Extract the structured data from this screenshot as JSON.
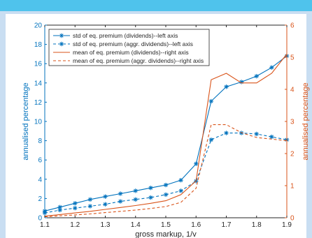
{
  "chart_data": {
    "type": "line",
    "title": "",
    "xlabel": "gross markup, 1/v",
    "ylabel_left": "annualised percentage",
    "ylabel_right": "annualised percentage",
    "xlim": [
      1.1,
      1.9
    ],
    "ylim_left": [
      0,
      20
    ],
    "ylim_right": [
      0,
      6
    ],
    "x_ticks": [
      "1.1",
      "1.2",
      "1.3",
      "1.4",
      "1.5",
      "1.6",
      "1.7",
      "1.8",
      "1.9"
    ],
    "y_ticks_left": [
      "0",
      "2",
      "4",
      "6",
      "8",
      "10",
      "12",
      "14",
      "16",
      "18",
      "20"
    ],
    "y_ticks_right": [
      "0",
      "1",
      "2",
      "3",
      "4",
      "5",
      "6"
    ],
    "grid": false,
    "legend_position": "top-left",
    "colors": {
      "left": "#0072bd",
      "right": "#d95319"
    },
    "series": [
      {
        "name": "std of eq. premium (dividends)--left axis",
        "axis": "left",
        "style": "solid",
        "marker": "asterisk",
        "color": "#0072bd",
        "x": [
          1.1,
          1.15,
          1.2,
          1.25,
          1.3,
          1.35,
          1.4,
          1.45,
          1.5,
          1.55,
          1.6,
          1.65,
          1.7,
          1.75,
          1.8,
          1.85,
          1.9
        ],
        "values": [
          0.7,
          1.1,
          1.5,
          1.9,
          2.2,
          2.5,
          2.8,
          3.1,
          3.4,
          3.9,
          5.6,
          12.1,
          13.6,
          14.1,
          14.7,
          15.6,
          16.8
        ]
      },
      {
        "name": "std of eq. premium (aggr. dividends)--left axis",
        "axis": "left",
        "style": "dashed",
        "marker": "asterisk",
        "color": "#0072bd",
        "x": [
          1.1,
          1.15,
          1.2,
          1.25,
          1.3,
          1.35,
          1.4,
          1.45,
          1.5,
          1.55,
          1.6,
          1.65,
          1.7,
          1.75,
          1.8,
          1.85,
          1.9
        ],
        "values": [
          0.5,
          0.8,
          1.0,
          1.2,
          1.4,
          1.7,
          1.9,
          2.1,
          2.4,
          2.8,
          3.8,
          8.1,
          8.8,
          8.8,
          8.7,
          8.4,
          8.1
        ]
      },
      {
        "name": "mean of eq. premium (dividends)--right axis",
        "axis": "right",
        "style": "solid",
        "marker": "none",
        "color": "#d95319",
        "x": [
          1.1,
          1.15,
          1.2,
          1.25,
          1.3,
          1.35,
          1.4,
          1.45,
          1.5,
          1.55,
          1.6,
          1.65,
          1.7,
          1.75,
          1.8,
          1.85,
          1.9
        ],
        "values": [
          0.05,
          0.1,
          0.15,
          0.2,
          0.26,
          0.32,
          0.38,
          0.45,
          0.53,
          0.72,
          1.15,
          4.3,
          4.5,
          4.2,
          4.2,
          4.5,
          5.1
        ]
      },
      {
        "name": "mean of eq. premium (aggr. dividends)--right axis",
        "axis": "right",
        "style": "dashed",
        "marker": "none",
        "color": "#d95319",
        "x": [
          1.1,
          1.15,
          1.2,
          1.25,
          1.3,
          1.35,
          1.4,
          1.45,
          1.5,
          1.55,
          1.6,
          1.65,
          1.7,
          1.75,
          1.8,
          1.85,
          1.9
        ],
        "values": [
          0.03,
          0.06,
          0.09,
          0.12,
          0.16,
          0.2,
          0.24,
          0.29,
          0.35,
          0.48,
          0.92,
          2.9,
          2.9,
          2.65,
          2.5,
          2.45,
          2.4
        ]
      }
    ]
  }
}
